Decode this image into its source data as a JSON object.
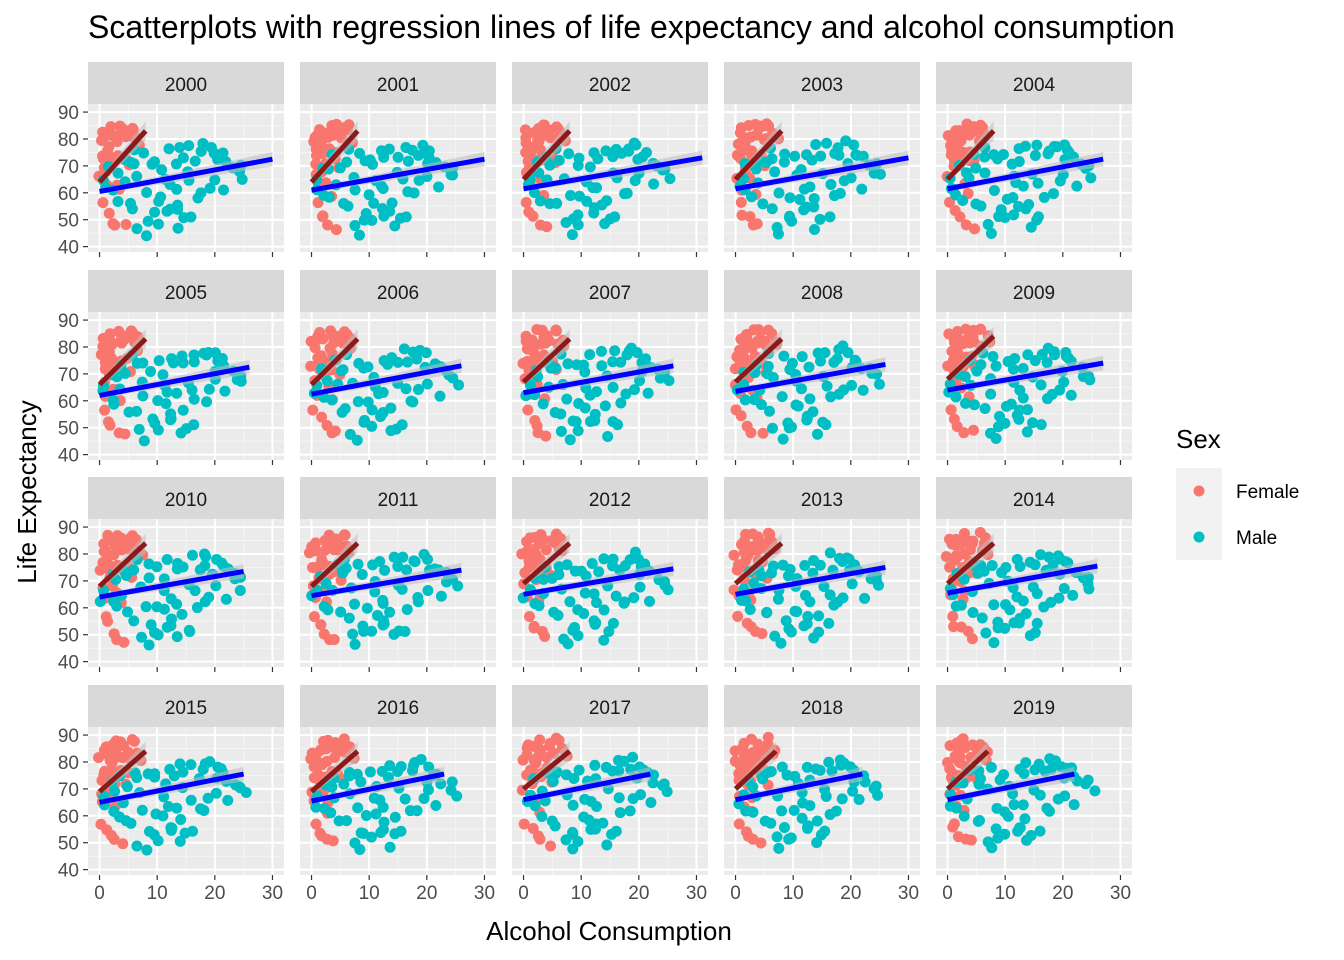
{
  "chart_data": {
    "type": "scatter",
    "title": "Scatterplots with regression lines of life expectancy and alcohol consumption",
    "xlabel": "Alcohol Consumption",
    "ylabel": "Life Expectancy",
    "xlim": [
      -2,
      32
    ],
    "ylim": [
      38,
      93
    ],
    "x_ticks": [
      0,
      10,
      20,
      30
    ],
    "y_ticks": [
      40,
      50,
      60,
      70,
      80,
      90
    ],
    "grid": true,
    "facet_by": "year",
    "facets": [
      "2000",
      "2001",
      "2002",
      "2003",
      "2004",
      "2005",
      "2006",
      "2007",
      "2008",
      "2009",
      "2010",
      "2011",
      "2012",
      "2013",
      "2014",
      "2015",
      "2016",
      "2017",
      "2018",
      "2019"
    ],
    "legend": {
      "title": "Sex",
      "position": "right",
      "entries": [
        {
          "label": "Female",
          "color": "#F8766D"
        },
        {
          "label": "Male",
          "color": "#00BFC4"
        }
      ]
    },
    "regression": {
      "female_line_color": "#8B1A1A",
      "male_line_color": "#0000FF",
      "ci_band_color": "#BEBEBE",
      "female": [
        {
          "x0": 0,
          "y0": 64,
          "x1": 8,
          "y1": 83
        },
        {
          "x0": 0,
          "y0": 64,
          "x1": 8,
          "y1": 83
        },
        {
          "x0": 0,
          "y0": 65,
          "x1": 8,
          "y1": 83
        },
        {
          "x0": 0,
          "y0": 65,
          "x1": 8,
          "y1": 83
        },
        {
          "x0": 0,
          "y0": 65,
          "x1": 8,
          "y1": 83
        },
        {
          "x0": 0,
          "y0": 66,
          "x1": 8,
          "y1": 83
        },
        {
          "x0": 0,
          "y0": 66,
          "x1": 8,
          "y1": 83
        },
        {
          "x0": 0,
          "y0": 67,
          "x1": 8,
          "y1": 83
        },
        {
          "x0": 0,
          "y0": 67,
          "x1": 8,
          "y1": 83
        },
        {
          "x0": 0,
          "y0": 68,
          "x1": 8,
          "y1": 84
        },
        {
          "x0": 0,
          "y0": 68,
          "x1": 8,
          "y1": 84
        },
        {
          "x0": 0,
          "y0": 68,
          "x1": 8,
          "y1": 84
        },
        {
          "x0": 0,
          "y0": 69,
          "x1": 8,
          "y1": 84
        },
        {
          "x0": 0,
          "y0": 69,
          "x1": 8,
          "y1": 84
        },
        {
          "x0": 0,
          "y0": 69,
          "x1": 8,
          "y1": 84
        },
        {
          "x0": 0,
          "y0": 69,
          "x1": 8,
          "y1": 84
        },
        {
          "x0": 0,
          "y0": 69,
          "x1": 8,
          "y1": 84
        },
        {
          "x0": 0,
          "y0": 70,
          "x1": 8,
          "y1": 84
        },
        {
          "x0": 0,
          "y0": 70,
          "x1": 7,
          "y1": 84
        },
        {
          "x0": 0,
          "y0": 70,
          "x1": 7,
          "y1": 84
        }
      ],
      "male": [
        {
          "x0": 0,
          "y0": 60.5,
          "x1": 30,
          "y1": 72.5
        },
        {
          "x0": 0,
          "y0": 61,
          "x1": 30,
          "y1": 72.5
        },
        {
          "x0": 0,
          "y0": 61.5,
          "x1": 31,
          "y1": 73
        },
        {
          "x0": 0,
          "y0": 61.5,
          "x1": 30,
          "y1": 73
        },
        {
          "x0": 0,
          "y0": 61.5,
          "x1": 27,
          "y1": 72.5
        },
        {
          "x0": 0,
          "y0": 62,
          "x1": 26,
          "y1": 72.5
        },
        {
          "x0": 0,
          "y0": 62.5,
          "x1": 26,
          "y1": 73
        },
        {
          "x0": 0,
          "y0": 63,
          "x1": 26,
          "y1": 73
        },
        {
          "x0": 0,
          "y0": 63.5,
          "x1": 26,
          "y1": 73.5
        },
        {
          "x0": 0,
          "y0": 64,
          "x1": 27,
          "y1": 74
        },
        {
          "x0": 0,
          "y0": 64,
          "x1": 25,
          "y1": 73.5
        },
        {
          "x0": 0,
          "y0": 64.5,
          "x1": 26,
          "y1": 74
        },
        {
          "x0": 0,
          "y0": 65,
          "x1": 26,
          "y1": 74.5
        },
        {
          "x0": 0,
          "y0": 65,
          "x1": 26,
          "y1": 75
        },
        {
          "x0": 0,
          "y0": 65.5,
          "x1": 26,
          "y1": 75.5
        },
        {
          "x0": 0,
          "y0": 65,
          "x1": 25,
          "y1": 75.5
        },
        {
          "x0": 0,
          "y0": 65.5,
          "x1": 23,
          "y1": 75.5
        },
        {
          "x0": 0,
          "y0": 66,
          "x1": 22,
          "y1": 75.5
        },
        {
          "x0": 0,
          "y0": 66,
          "x1": 22,
          "y1": 75.5
        },
        {
          "x0": 0,
          "y0": 66,
          "x1": 22,
          "y1": 75.5
        }
      ]
    },
    "series": [
      {
        "name": "Female",
        "color": "#F8766D",
        "x": [
          0.2,
          0.5,
          0.8,
          1,
          1.3,
          1.6,
          2,
          2.3,
          2.6,
          3,
          3.3,
          3.6,
          4,
          4.4,
          4.8,
          5.2,
          5.6,
          6,
          6.5,
          7,
          0.4,
          0.9,
          1.4,
          1.9,
          2.4,
          2.9,
          3.4,
          3.9,
          4.5,
          5.1,
          0.3,
          1,
          1.7,
          2.5,
          3.2,
          0.6,
          1.5,
          2.2,
          3,
          4.2
        ],
        "y": [
          78,
          82,
          75,
          80,
          83,
          77,
          84,
          81,
          79,
          85,
          82,
          80,
          84,
          83,
          81,
          85,
          80,
          84,
          82,
          79,
          72,
          74,
          70,
          76,
          73,
          71,
          75,
          72,
          74,
          70,
          66,
          62,
          68,
          64,
          60,
          55,
          52,
          50,
          48,
          47
        ]
      },
      {
        "name": "Male",
        "color": "#00BFC4",
        "x": [
          0.5,
          1,
          2,
          3,
          4,
          5,
          6,
          7,
          8,
          9,
          10,
          11,
          12,
          13,
          14,
          15,
          16,
          17,
          18,
          19,
          20,
          21,
          22,
          23,
          24,
          25,
          8,
          10,
          12,
          14,
          16,
          18,
          20,
          22,
          6,
          9,
          11,
          13,
          15,
          17,
          19,
          7,
          9,
          12,
          14,
          16,
          3,
          5,
          8,
          10,
          12,
          11,
          13,
          15,
          20,
          24,
          2,
          4,
          6,
          18,
          21
        ],
        "y": [
          62,
          65,
          60,
          68,
          64,
          70,
          72,
          66,
          74,
          71,
          73,
          69,
          75,
          72,
          76,
          74,
          77,
          73,
          75,
          78,
          76,
          74,
          72,
          70,
          68,
          66,
          60,
          58,
          62,
          56,
          64,
          60,
          66,
          62,
          55,
          52,
          57,
          54,
          50,
          59,
          63,
          48,
          50,
          53,
          47,
          51,
          58,
          56,
          45,
          49,
          52,
          65,
          61,
          67,
          71,
          69,
          70,
          73,
          75,
          77,
          74
        ]
      }
    ]
  }
}
